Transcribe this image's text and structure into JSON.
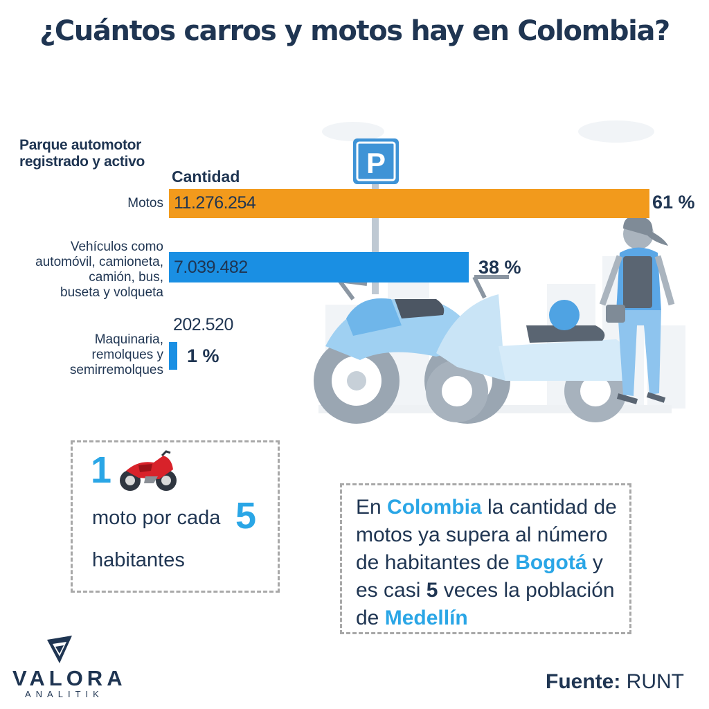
{
  "title": "¿Cuántos carros y motos hay en Colombia?",
  "section_title_line1": "Parque automotor",
  "section_title_line2": "registrado y activo",
  "column_header": "Cantidad",
  "chart_data": {
    "type": "bar",
    "orientation": "horizontal",
    "categories": [
      "Motos",
      "Vehículos como automóvil, camioneta, camión, bus, buseta y volqueta",
      "Maquinaria, remolques y semirremolques"
    ],
    "category_lines": [
      [
        "Motos"
      ],
      [
        "Vehículos como",
        "automóvil, camioneta,",
        "camión, bus,",
        "buseta y volqueta"
      ],
      [
        "Maquinaria,",
        "remolques y",
        "semirremolques"
      ]
    ],
    "values": [
      11276254,
      7039482,
      202520
    ],
    "value_labels": [
      "11.276.254",
      "7.039.482",
      "202.520"
    ],
    "percent_labels": [
      "61 %",
      "38 %",
      "1 %"
    ],
    "percents": [
      61,
      38,
      1
    ],
    "colors": [
      "#f29a1c",
      "#1a8fe3",
      "#1a8fe3"
    ]
  },
  "stat_box": {
    "number_top": "1",
    "text_mid": "moto por cada",
    "number_mid": "5",
    "text_bottom": "habitantes",
    "icon": "motorcycle-icon"
  },
  "fact_box": {
    "p1": "En ",
    "h1": "Colombia",
    "p2": " la cantidad de motos ya supera al número de habitantes de ",
    "h2": "Bogotá",
    "p3": " y es casi ",
    "h3": "5",
    "p4": " veces la población de ",
    "h4": "Medellín"
  },
  "source_label": "Fuente:",
  "source_value": "RUNT",
  "logo": {
    "name": "VALORA",
    "sub": "ANALITIK"
  },
  "parking_sign": "P",
  "colors": {
    "navy": "#1f3552",
    "accent_blue": "#2aa6e6",
    "orange": "#f29a1c",
    "bar_blue": "#1a8fe3"
  }
}
